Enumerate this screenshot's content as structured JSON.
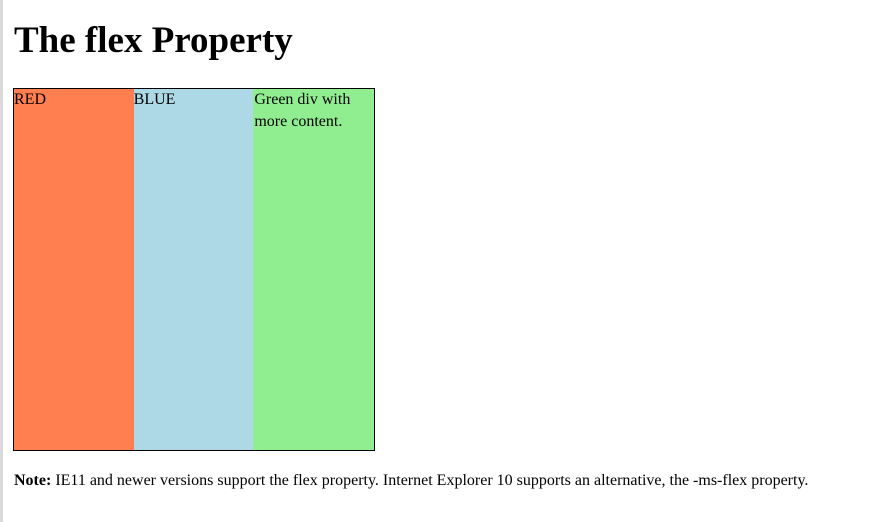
{
  "page": {
    "heading": "The flex Property"
  },
  "flex_items": [
    {
      "label": "RED",
      "color": "#ff7f50"
    },
    {
      "label": "BLUE",
      "color": "#add8e6"
    },
    {
      "label": "Green div with more content.",
      "color": "#90ee90"
    }
  ],
  "note": {
    "label": "Note:",
    "text": " IE11 and newer versions support the flex property. Internet Explorer 10 supports an alternative, the -ms-flex property."
  },
  "colors": {
    "border": "#000000",
    "background": "#ffffff"
  }
}
